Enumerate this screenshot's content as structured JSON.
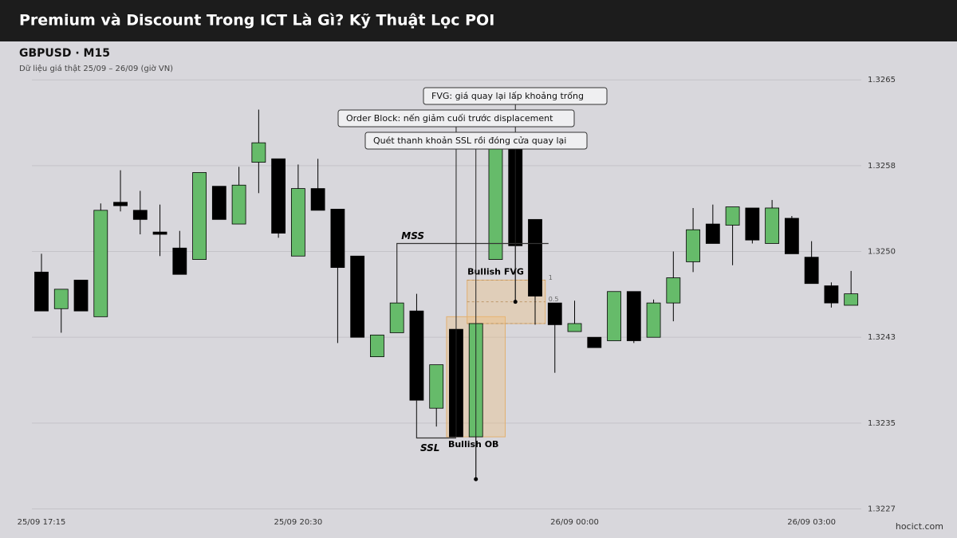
{
  "header": {
    "title": "Premium và Discount Trong ICT Là Gì? Kỹ Thuật Lọc POI"
  },
  "footer": {
    "site": "hocict.com"
  },
  "chart_data": {
    "type": "candlestick",
    "title": "GBPUSD · M15",
    "subtitle": "Dữ liệu giá thật 25/09 – 26/09 (giờ VN)",
    "categories": [
      "25/09 17:15",
      null,
      null,
      null,
      null,
      null,
      null,
      null,
      null,
      null,
      null,
      null,
      null,
      "25/09 20:30",
      null,
      null,
      null,
      null,
      null,
      null,
      null,
      null,
      null,
      null,
      null,
      null,
      null,
      "26/09 00:00",
      null,
      null,
      null,
      null,
      null,
      null,
      null,
      null,
      null,
      null,
      null,
      "26/09 03:00",
      null,
      null
    ],
    "open": [
      1.32482,
      1.3245,
      1.32475,
      1.32443,
      1.32543,
      1.32536,
      1.32517,
      1.32503,
      1.32493,
      1.32557,
      1.32524,
      1.32578,
      1.32581,
      1.32496,
      1.32555,
      1.32537,
      1.32496,
      1.32408,
      1.32429,
      1.32448,
      1.32363,
      1.32432,
      1.32338,
      1.32493,
      1.32589,
      1.32528,
      1.32455,
      1.3243,
      1.32425,
      1.32422,
      1.32465,
      1.32425,
      1.32455,
      1.32491,
      1.32524,
      1.32523,
      1.32538,
      1.32507,
      1.32529,
      1.32495,
      1.3247,
      1.32453
    ],
    "high": [
      1.32498,
      1.32467,
      1.32475,
      1.32542,
      1.32571,
      1.32553,
      1.32541,
      1.32518,
      1.32569,
      1.32557,
      1.32574,
      1.32624,
      1.32581,
      1.32576,
      1.32581,
      1.32537,
      1.32496,
      1.32427,
      1.32455,
      1.32463,
      1.32401,
      1.32432,
      1.32437,
      1.3259,
      1.32589,
      1.32528,
      1.32455,
      1.32457,
      1.32425,
      1.32465,
      1.32465,
      1.32458,
      1.325,
      1.32538,
      1.32541,
      1.32539,
      1.32538,
      1.32545,
      1.32531,
      1.32509,
      1.32473,
      1.32483
    ],
    "low": [
      1.32448,
      1.32429,
      1.32448,
      1.32443,
      1.32535,
      1.32515,
      1.32496,
      1.3248,
      1.32493,
      1.32528,
      1.32524,
      1.32551,
      1.32512,
      1.32496,
      1.32536,
      1.3242,
      1.32425,
      1.32408,
      1.32429,
      1.32337,
      1.32347,
      1.32338,
      1.32301,
      1.32493,
      1.32456,
      1.32436,
      1.32394,
      1.3243,
      1.32416,
      1.32422,
      1.3242,
      1.32425,
      1.32439,
      1.32482,
      1.32507,
      1.32488,
      1.32507,
      1.32507,
      1.32498,
      1.32472,
      1.32451,
      1.32453
    ],
    "close": [
      1.32448,
      1.32467,
      1.32448,
      1.32536,
      1.3254,
      1.32528,
      1.32515,
      1.3248,
      1.32569,
      1.32528,
      1.32558,
      1.32595,
      1.32516,
      1.32555,
      1.32536,
      1.32486,
      1.32425,
      1.32427,
      1.32455,
      1.3237,
      1.32401,
      1.32338,
      1.32437,
      1.3259,
      1.32505,
      1.32461,
      1.32436,
      1.32437,
      1.32416,
      1.32465,
      1.32422,
      1.32455,
      1.32477,
      1.32519,
      1.32507,
      1.32539,
      1.3251,
      1.32538,
      1.32498,
      1.32472,
      1.32455,
      1.32463
    ],
    "up_color": "#66bb6a",
    "down_color": "#000000",
    "ylim": [
      1.32267,
      1.32678
    ],
    "yticks": [
      {
        "value": 1.3265,
        "label": "1.3265"
      },
      {
        "value": 1.32575,
        "label": "1.3258"
      },
      {
        "value": 1.325,
        "label": "1.3250"
      },
      {
        "value": 1.32425,
        "label": "1.3243"
      },
      {
        "value": 1.3235,
        "label": "1.3235"
      },
      {
        "value": 1.32275,
        "label": "1.3227"
      }
    ],
    "grid": true,
    "annotations": {
      "mss": {
        "label": "MSS",
        "price": 1.32507
      },
      "ssl": {
        "label": "SSL",
        "price": 1.32337
      },
      "order_block": {
        "label": "Bullish OB",
        "top": 1.32443,
        "bottom": 1.32338
      },
      "fvg": {
        "label": "Bullish FVG",
        "top": 1.32475,
        "bottom": 1.32437,
        "fib_levels": [
          1,
          0.5,
          0
        ]
      },
      "callouts": [
        {
          "text": "FVG: giá quay lại lấp khoảng trống",
          "price": 1.32456
        },
        {
          "text": "Order Block: nến giảm cuối trước displacement",
          "price": 1.32338
        },
        {
          "text": "Quét thanh khoản SSL rồi đóng cửa quay lại",
          "price": 1.32301
        }
      ]
    }
  }
}
